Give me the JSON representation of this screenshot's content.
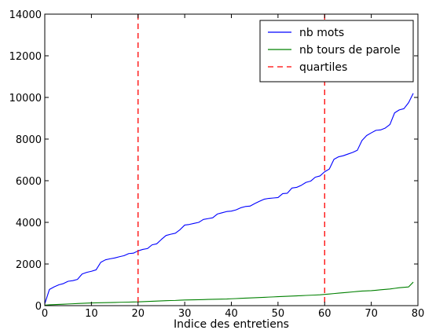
{
  "chart_data": {
    "type": "line",
    "xlabel": "Indice des entretiens",
    "ylabel": "",
    "xlim": [
      0,
      80
    ],
    "ylim": [
      0,
      14000
    ],
    "xticks": [
      0,
      10,
      20,
      30,
      40,
      50,
      60,
      70,
      80
    ],
    "yticks": [
      0,
      2000,
      4000,
      6000,
      8000,
      10000,
      12000,
      14000
    ],
    "grid": false,
    "legend_position": "top-right",
    "series": [
      {
        "name": "nb mots",
        "color": "#0000ff",
        "style": "solid",
        "x": [
          0,
          1,
          2,
          3,
          4,
          5,
          6,
          7,
          8,
          9,
          10,
          11,
          12,
          13,
          14,
          15,
          16,
          17,
          18,
          19,
          20,
          21,
          22,
          23,
          24,
          25,
          26,
          27,
          28,
          29,
          30,
          31,
          32,
          33,
          34,
          35,
          36,
          37,
          38,
          39,
          40,
          41,
          42,
          43,
          44,
          45,
          46,
          47,
          48,
          49,
          50,
          51,
          52,
          53,
          54,
          55,
          56,
          57,
          58,
          59,
          60,
          61,
          62,
          63,
          64,
          65,
          66,
          67,
          68,
          69,
          70,
          71,
          72,
          73,
          74,
          75,
          76,
          77,
          78,
          79
        ],
        "values": [
          90,
          780,
          900,
          1000,
          1060,
          1170,
          1200,
          1260,
          1520,
          1600,
          1650,
          1720,
          2080,
          2200,
          2250,
          2290,
          2350,
          2400,
          2500,
          2520,
          2630,
          2700,
          2740,
          2920,
          2970,
          3180,
          3370,
          3430,
          3480,
          3650,
          3870,
          3900,
          3950,
          4000,
          4140,
          4180,
          4220,
          4400,
          4460,
          4520,
          4540,
          4600,
          4700,
          4760,
          4780,
          4900,
          5010,
          5110,
          5150,
          5170,
          5190,
          5380,
          5400,
          5650,
          5680,
          5780,
          5920,
          5980,
          6170,
          6230,
          6430,
          6560,
          7030,
          7150,
          7200,
          7280,
          7360,
          7460,
          7930,
          8170,
          8300,
          8420,
          8440,
          8530,
          8700,
          9260,
          9400,
          9460,
          9750,
          10200
        ]
      },
      {
        "name": "nb tours de parole",
        "color": "#008000",
        "style": "solid",
        "x": [
          0,
          1,
          2,
          3,
          4,
          5,
          6,
          7,
          8,
          9,
          10,
          11,
          12,
          13,
          14,
          15,
          16,
          17,
          18,
          19,
          20,
          21,
          22,
          23,
          24,
          25,
          26,
          27,
          28,
          29,
          30,
          31,
          32,
          33,
          34,
          35,
          36,
          37,
          38,
          39,
          40,
          41,
          42,
          43,
          44,
          45,
          46,
          47,
          48,
          49,
          50,
          51,
          52,
          53,
          54,
          55,
          56,
          57,
          58,
          59,
          60,
          61,
          62,
          63,
          64,
          65,
          66,
          67,
          68,
          69,
          70,
          71,
          72,
          73,
          74,
          75,
          76,
          77,
          78,
          79
        ],
        "values": [
          20,
          40,
          50,
          60,
          70,
          80,
          90,
          100,
          110,
          120,
          130,
          135,
          140,
          145,
          150,
          155,
          160,
          165,
          170,
          175,
          180,
          190,
          200,
          210,
          220,
          230,
          240,
          245,
          250,
          260,
          270,
          275,
          280,
          285,
          290,
          300,
          305,
          310,
          315,
          320,
          330,
          340,
          350,
          360,
          370,
          380,
          390,
          400,
          410,
          420,
          430,
          440,
          450,
          460,
          470,
          480,
          490,
          500,
          510,
          520,
          540,
          560,
          580,
          600,
          620,
          640,
          660,
          680,
          700,
          710,
          720,
          740,
          760,
          780,
          800,
          830,
          860,
          880,
          900,
          1130
        ]
      },
      {
        "name": "quartiles",
        "color": "#ff0000",
        "style": "dashed",
        "vlines": [
          20,
          60
        ]
      }
    ]
  }
}
